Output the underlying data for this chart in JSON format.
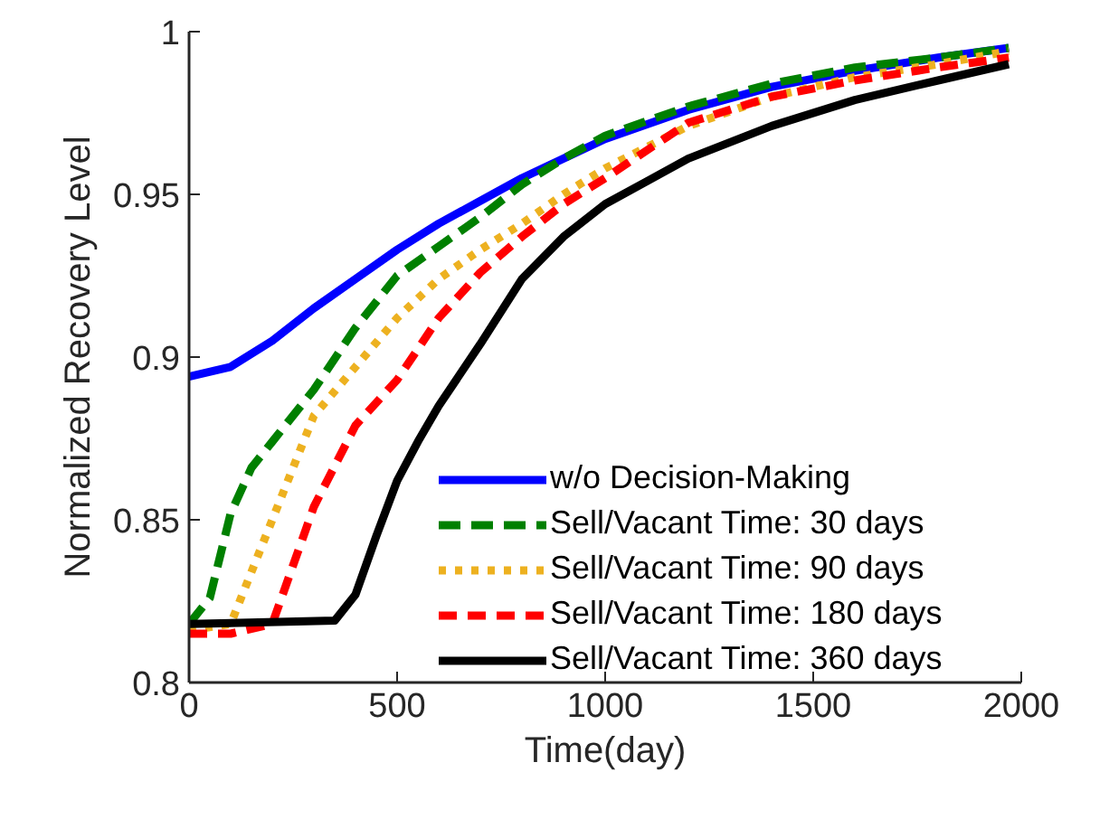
{
  "chart_data": {
    "type": "line",
    "xlabel": "Time(day)",
    "ylabel": "Normalized Recovery Level",
    "xlim": [
      0,
      2000
    ],
    "ylim": [
      0.8,
      1
    ],
    "xticks": [
      0,
      500,
      1000,
      1500,
      2000
    ],
    "yticks": [
      0.8,
      0.85,
      0.9,
      0.95,
      1
    ],
    "grid": false,
    "legend": "bottom right",
    "marker": "none",
    "series": [
      {
        "name": "w/o Decision-Making",
        "color": "#0000ff",
        "line_style": "solid",
        "x": [
          0,
          100,
          200,
          300,
          400,
          500,
          600,
          700,
          800,
          900,
          1000,
          1200,
          1400,
          1600,
          1800,
          1970
        ],
        "values": [
          0.894,
          0.897,
          0.905,
          0.915,
          0.924,
          0.933,
          0.941,
          0.948,
          0.955,
          0.961,
          0.967,
          0.976,
          0.983,
          0.988,
          0.992,
          0.995
        ]
      },
      {
        "name": "Sell/Vacant Time: 30 days",
        "color": "#008000",
        "line_style": "dashed",
        "x": [
          0,
          50,
          100,
          150,
          200,
          300,
          400,
          500,
          600,
          700,
          800,
          900,
          1000,
          1200,
          1400,
          1600,
          1800,
          1970
        ],
        "values": [
          0.818,
          0.826,
          0.852,
          0.866,
          0.874,
          0.89,
          0.909,
          0.925,
          0.934,
          0.943,
          0.953,
          0.961,
          0.968,
          0.977,
          0.984,
          0.989,
          0.992,
          0.995
        ]
      },
      {
        "name": "Sell/Vacant Time: 90 days",
        "color": "#edb120",
        "line_style": "dotted",
        "x": [
          0,
          100,
          150,
          200,
          300,
          400,
          500,
          600,
          700,
          800,
          900,
          1000,
          1200,
          1400,
          1600,
          1800,
          1970
        ],
        "values": [
          0.816,
          0.818,
          0.834,
          0.85,
          0.882,
          0.897,
          0.912,
          0.924,
          0.933,
          0.941,
          0.95,
          0.958,
          0.971,
          0.98,
          0.986,
          0.99,
          0.994
        ]
      },
      {
        "name": "Sell/Vacant Time: 180 days",
        "color": "#ff0000",
        "line_style": "dashdot",
        "x": [
          0,
          100,
          200,
          300,
          400,
          500,
          600,
          700,
          800,
          900,
          1000,
          1200,
          1400,
          1600,
          1800,
          1970
        ],
        "values": [
          0.815,
          0.815,
          0.818,
          0.854,
          0.879,
          0.893,
          0.912,
          0.926,
          0.937,
          0.947,
          0.955,
          0.972,
          0.98,
          0.985,
          0.989,
          0.992
        ]
      },
      {
        "name": "Sell/Vacant Time: 360 days",
        "color": "#000000",
        "line_style": "solid",
        "x": [
          0,
          350,
          400,
          450,
          500,
          550,
          600,
          700,
          800,
          900,
          1000,
          1100,
          1200,
          1400,
          1600,
          1800,
          1970
        ],
        "values": [
          0.818,
          0.819,
          0.827,
          0.845,
          0.862,
          0.874,
          0.885,
          0.904,
          0.924,
          0.937,
          0.947,
          0.954,
          0.961,
          0.971,
          0.979,
          0.985,
          0.99
        ]
      }
    ]
  }
}
